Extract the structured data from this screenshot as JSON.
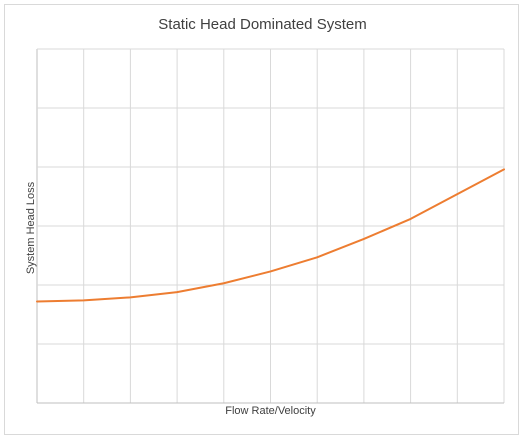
{
  "chart_data": {
    "type": "line",
    "title": "Static Head Dominated System",
    "xlabel": "Flow Rate/Velocity",
    "ylabel": "System Head Loss",
    "grid": true,
    "legend": "none",
    "x_tick_labels_shown": false,
    "y_tick_labels_shown": false,
    "xlim": [
      0,
      10
    ],
    "ylim": [
      0,
      6
    ],
    "x": [
      0,
      1,
      2,
      3,
      4,
      5,
      6,
      7,
      8,
      9,
      10
    ],
    "series": [
      {
        "values": [
          1.72,
          1.74,
          1.79,
          1.88,
          2.03,
          2.23,
          2.47,
          2.78,
          3.12,
          3.54,
          3.96
        ],
        "color": "#ed7d31"
      }
    ],
    "colors": {
      "grid": "#d9d9d9",
      "text": "#404040"
    }
  }
}
